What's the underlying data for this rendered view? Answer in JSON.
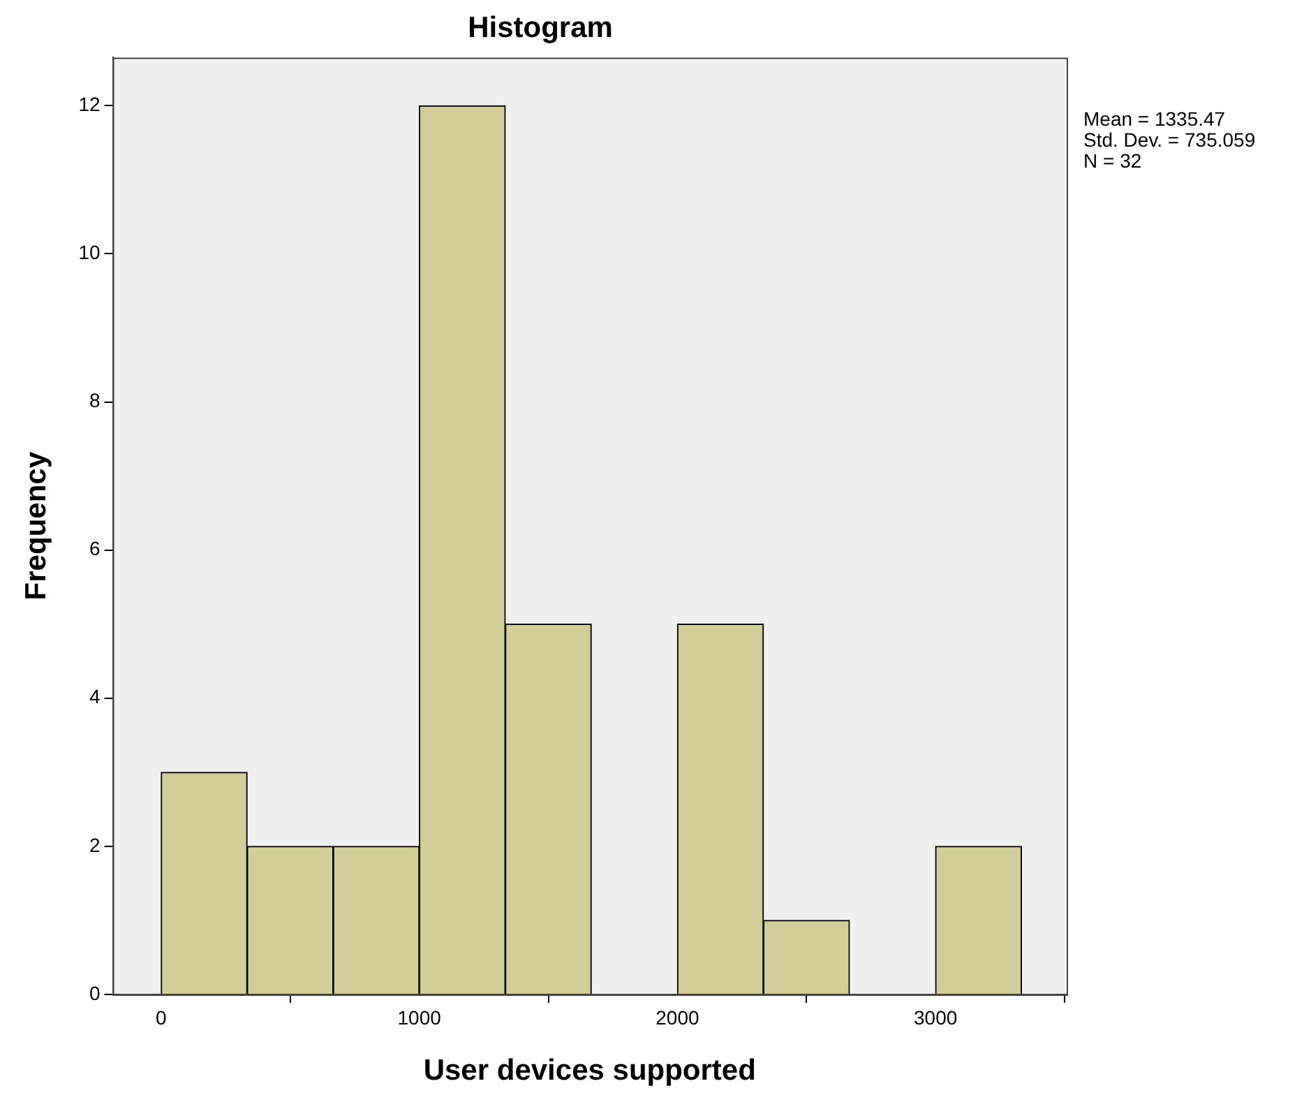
{
  "chart_data": {
    "type": "histogram",
    "title": "Histogram",
    "xlabel": "User devices supported",
    "ylabel": "Frequency",
    "bins": [
      0,
      333.33,
      666.67,
      1000,
      1333.33,
      1666.67,
      2000,
      2333.33,
      2666.67,
      3000,
      3333.33
    ],
    "values": [
      3,
      2,
      2,
      12,
      5,
      0,
      5,
      1,
      0,
      2
    ],
    "color": "#d3ce97",
    "xlim": [
      -187.5,
      3508
    ],
    "xticks": [
      0,
      1000,
      2000,
      3000
    ],
    "ylim": [
      0,
      12.65
    ],
    "yticks": [
      0,
      2,
      4,
      6,
      8,
      10,
      12
    ],
    "grid": false,
    "legend": false,
    "annotations": [
      "Mean = 1335.47",
      "Std. Dev. = 735.059",
      "N = 32"
    ]
  }
}
